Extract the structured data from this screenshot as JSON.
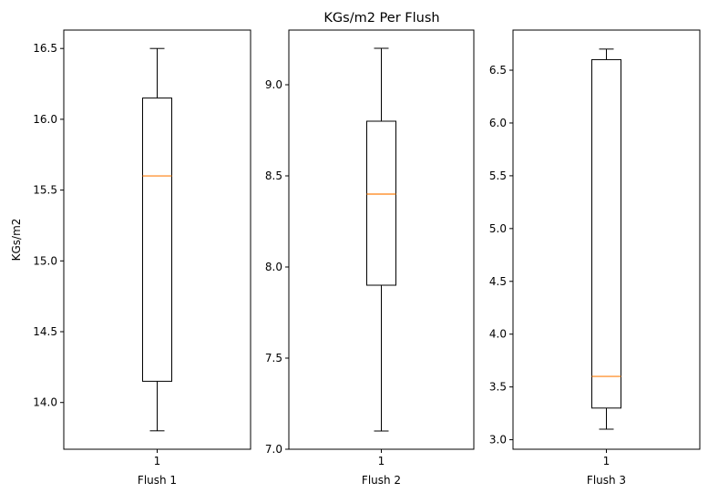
{
  "title": "KGs/m2 Per Flush",
  "colors": {
    "box": "#000000",
    "median": "#ff7f0e",
    "axis": "#000000",
    "background": "#ffffff"
  },
  "chart_data": [
    {
      "type": "box",
      "xlabel": "Flush 1",
      "ylabel": "KGs/m2",
      "x_ticks": [
        "1"
      ],
      "ylim": [
        13.67,
        16.63
      ],
      "y_ticks": [
        14.0,
        14.5,
        15.0,
        15.5,
        16.0,
        16.5
      ],
      "y_tick_labels": [
        "14.0",
        "14.5",
        "15.0",
        "15.5",
        "16.0",
        "16.5"
      ],
      "box": {
        "whisker_low": 13.8,
        "q1": 14.15,
        "median": 15.6,
        "q3": 16.15,
        "whisker_high": 16.5
      }
    },
    {
      "type": "box",
      "xlabel": "Flush 2",
      "ylabel": "",
      "x_ticks": [
        "1"
      ],
      "ylim": [
        7.0,
        9.3
      ],
      "y_ticks": [
        7.0,
        7.5,
        8.0,
        8.5,
        9.0
      ],
      "y_tick_labels": [
        "7.0",
        "7.5",
        "8.0",
        "8.5",
        "9.0"
      ],
      "box": {
        "whisker_low": 7.1,
        "q1": 7.9,
        "median": 8.4,
        "q3": 8.8,
        "whisker_high": 9.2
      }
    },
    {
      "type": "box",
      "xlabel": "Flush 3",
      "ylabel": "",
      "x_ticks": [
        "1"
      ],
      "ylim": [
        2.91,
        6.88
      ],
      "y_ticks": [
        3.0,
        3.5,
        4.0,
        4.5,
        5.0,
        5.5,
        6.0,
        6.5
      ],
      "y_tick_labels": [
        "3.0",
        "3.5",
        "4.0",
        "4.5",
        "5.0",
        "5.5",
        "6.0",
        "6.5"
      ],
      "box": {
        "whisker_low": 3.1,
        "q1": 3.3,
        "median": 3.6,
        "q3": 6.6,
        "whisker_high": 6.7
      }
    }
  ]
}
